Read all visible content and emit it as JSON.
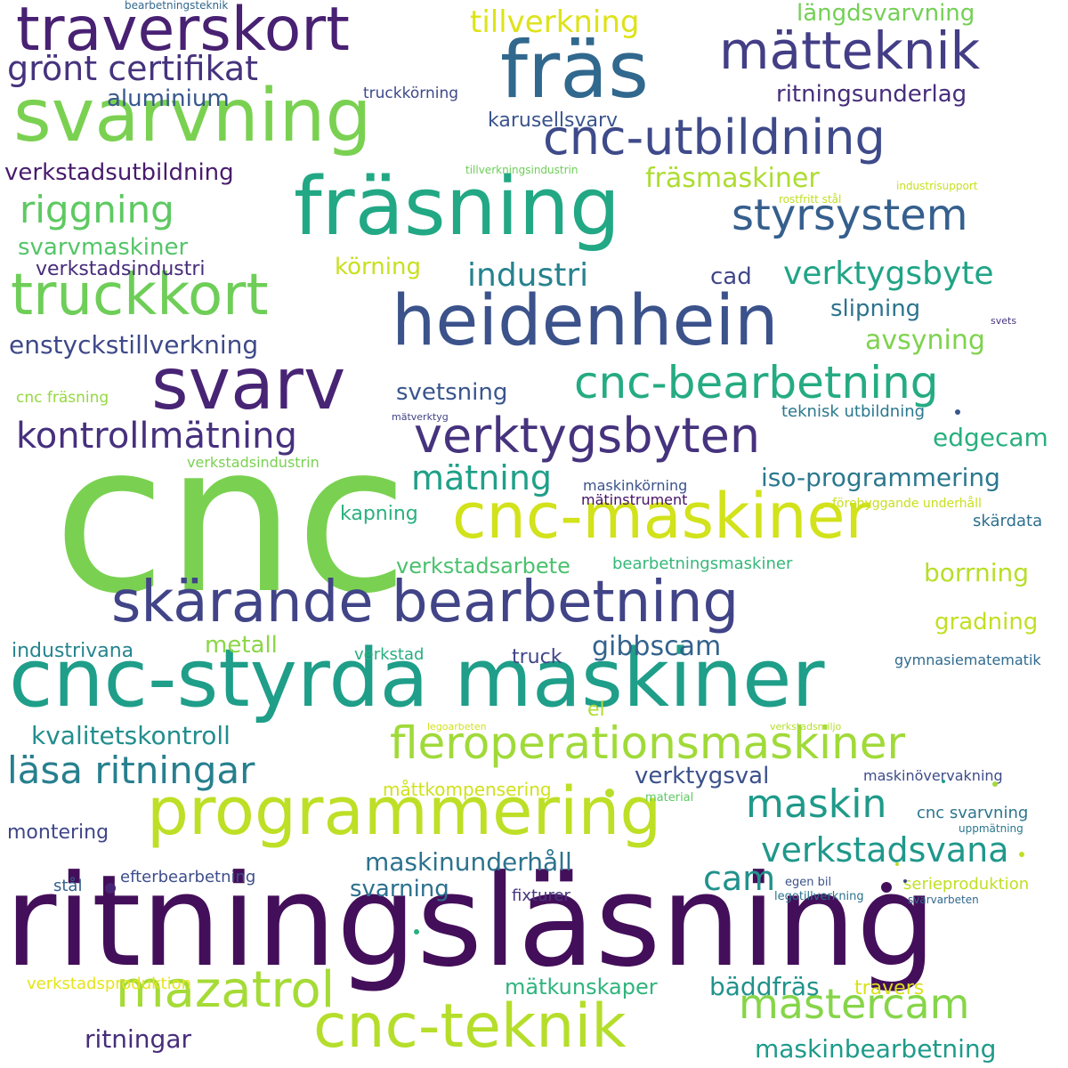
{
  "words": [
    {
      "text": "cnc",
      "color": "#7ad151"
    },
    {
      "text": "ritningsläsning",
      "color": "#440f5a"
    },
    {
      "text": "cnc-styrda maskiner",
      "color": "#1f9e89"
    },
    {
      "text": "skärande bearbetning",
      "color": "#414487"
    },
    {
      "text": "fräsning",
      "color": "#22a884"
    },
    {
      "text": "svarvning",
      "color": "#7ad151"
    },
    {
      "text": "programmering",
      "color": "#bddf26"
    },
    {
      "text": "cnc-maskiner",
      "color": "#d2e21b"
    },
    {
      "text": "heidenhein",
      "color": "#3b528b"
    },
    {
      "text": "svarv",
      "color": "#482475"
    },
    {
      "text": "fräs",
      "color": "#31688e"
    },
    {
      "text": "traverskort",
      "color": "#482173"
    },
    {
      "text": "cnc-teknik",
      "color": "#b5de2b"
    },
    {
      "text": "truckkort",
      "color": "#6ece58"
    },
    {
      "text": "verktygsbyten",
      "color": "#46337e"
    },
    {
      "text": "cnc-utbildning",
      "color": "#3e4a89"
    },
    {
      "text": "fleroperationsmaskiner",
      "color": "#a0da39"
    },
    {
      "text": "mätteknik",
      "color": "#433e85"
    },
    {
      "text": "cnc-bearbetning",
      "color": "#25ab82"
    },
    {
      "text": "mazatrol",
      "color": "#a5db36"
    },
    {
      "text": "mastercam",
      "color": "#86d549"
    },
    {
      "text": "kontrollmätning",
      "color": "#46307e"
    },
    {
      "text": "styrsystem",
      "color": "#355f8d"
    },
    {
      "text": "läsa ritningar",
      "color": "#277f8e"
    },
    {
      "text": "grönt certifikat",
      "color": "#46337e"
    },
    {
      "text": "riggning",
      "color": "#5ec962"
    },
    {
      "text": "maskin",
      "color": "#1f9a8a"
    },
    {
      "text": "verkstadsvana",
      "color": "#1f988b"
    },
    {
      "text": "mätning",
      "color": "#1fa088"
    },
    {
      "text": "verktygsbyte",
      "color": "#20a486"
    },
    {
      "text": "industri",
      "color": "#26828e"
    },
    {
      "text": "tillverkning",
      "color": "#dde318"
    },
    {
      "text": "enstyckstillverkning",
      "color": "#3e4989"
    },
    {
      "text": "avsyning",
      "color": "#7fd34e"
    },
    {
      "text": "edgecam",
      "color": "#29af7f"
    },
    {
      "text": "iso-programmering",
      "color": "#2a788e"
    },
    {
      "text": "kvalitetskontroll",
      "color": "#228d8d"
    },
    {
      "text": "maskinunderhåll",
      "color": "#2c728e"
    },
    {
      "text": "fräsmaskiner",
      "color": "#addc30"
    },
    {
      "text": "gibbscam",
      "color": "#33628d"
    },
    {
      "text": "borrning",
      "color": "#b8de29"
    },
    {
      "text": "cam",
      "color": "#21918c"
    },
    {
      "text": "ritningar",
      "color": "#472d7b"
    },
    {
      "text": "maskinbearbetning",
      "color": "#1e9b8a"
    },
    {
      "text": "bäddfräs",
      "color": "#20928c"
    },
    {
      "text": "svarvmaskiner",
      "color": "#54c568"
    },
    {
      "text": "verkstadsutbildning",
      "color": "#481b6d"
    },
    {
      "text": "längdsvarvning",
      "color": "#74d055"
    },
    {
      "text": "ritningsunderlag",
      "color": "#472d7b"
    },
    {
      "text": "svarning",
      "color": "#2d708e"
    },
    {
      "text": "verkstadsarbete",
      "color": "#4ac16d"
    },
    {
      "text": "mätkunskaper",
      "color": "#2fb47c"
    },
    {
      "text": "slipning",
      "color": "#2c738e"
    },
    {
      "text": "gradning",
      "color": "#c2df23"
    },
    {
      "text": "svetsning",
      "color": "#39558c"
    },
    {
      "text": "verktygsval",
      "color": "#3b518b"
    },
    {
      "text": "körning",
      "color": "#c8e020"
    },
    {
      "text": "aluminium",
      "color": "#38598c"
    },
    {
      "text": "metall",
      "color": "#8bd646"
    },
    {
      "text": "cad",
      "color": "#404688"
    },
    {
      "text": "karusellsvarv",
      "color": "#3a548c"
    },
    {
      "text": "verkstadsindustri",
      "color": "#472c7a"
    },
    {
      "text": "industrivana",
      "color": "#25848e"
    },
    {
      "text": "kapning",
      "color": "#2ab07f"
    },
    {
      "text": "truck",
      "color": "#404588"
    },
    {
      "text": "montering",
      "color": "#3f4788"
    },
    {
      "text": "travers",
      "color": "#d8e219"
    },
    {
      "text": "el",
      "color": "#b0dd2f"
    },
    {
      "text": "serieproduktion",
      "color": "#c0df25"
    },
    {
      "text": "bearbetningsmaskiner",
      "color": "#35b779"
    },
    {
      "text": "efterbearbetning",
      "color": "#3d4d8a"
    },
    {
      "text": "skärdata",
      "color": "#2e6f8e"
    },
    {
      "text": "fixturer",
      "color": "#45357f"
    },
    {
      "text": "måttkompensering",
      "color": "#d0e11c"
    },
    {
      "text": "verkstadsproduktion",
      "color": "#e5e419"
    },
    {
      "text": "cnc svarvning",
      "color": "#2b758e"
    },
    {
      "text": "teknisk utbildning",
      "color": "#2a788e"
    },
    {
      "text": "maskinövervakning",
      "color": "#3e4c8a"
    },
    {
      "text": "gymnasiematematik",
      "color": "#306a8e"
    },
    {
      "text": "maskinkörning",
      "color": "#3b528b"
    },
    {
      "text": "mätinstrument",
      "color": "#471365"
    },
    {
      "text": "stål",
      "color": "#34618d"
    },
    {
      "text": "verkstad",
      "color": "#28ae80"
    },
    {
      "text": "truckkörning",
      "color": "#3e4989"
    },
    {
      "text": "cnc fräsning",
      "color": "#95d840"
    },
    {
      "text": "verkstadsindustrin",
      "color": "#7ad151"
    },
    {
      "text": "förebyggande underhåll",
      "color": "#c8e020"
    },
    {
      "text": "egen bil",
      "color": "#3b528b"
    },
    {
      "text": "legotillverkning",
      "color": "#2c728e"
    },
    {
      "text": "svarvarbeten",
      "color": "#31688e"
    },
    {
      "text": "uppmätning",
      "color": "#2a778e"
    },
    {
      "text": "material",
      "color": "#5ec962"
    },
    {
      "text": "industrisupport",
      "color": "#c8e020"
    },
    {
      "text": "rostfritt stål",
      "color": "#c0df25"
    },
    {
      "text": "tillverkningsindustrin",
      "color": "#6ece58"
    },
    {
      "text": "bearbetningsteknik",
      "color": "#31688e"
    },
    {
      "text": "mätverktyg",
      "color": "#414487"
    },
    {
      "text": "legoarbeten",
      "color": "#d2e21b"
    },
    {
      "text": "verkstadsmiljo",
      "color": "#b5de2b"
    },
    {
      "text": "svets",
      "color": "#46337e"
    }
  ],
  "dots": [
    {
      "color": "#482475"
    },
    {
      "color": "#b8de29"
    },
    {
      "color": "#39558c"
    },
    {
      "color": "#440f5a"
    },
    {
      "color": "#a0da39"
    },
    {
      "color": "#c0df25"
    },
    {
      "color": "#2ab07f"
    },
    {
      "color": "#d2e21b"
    },
    {
      "color": "#1f9e89"
    },
    {
      "color": "#3e4989"
    },
    {
      "color": "#b8de29"
    }
  ]
}
